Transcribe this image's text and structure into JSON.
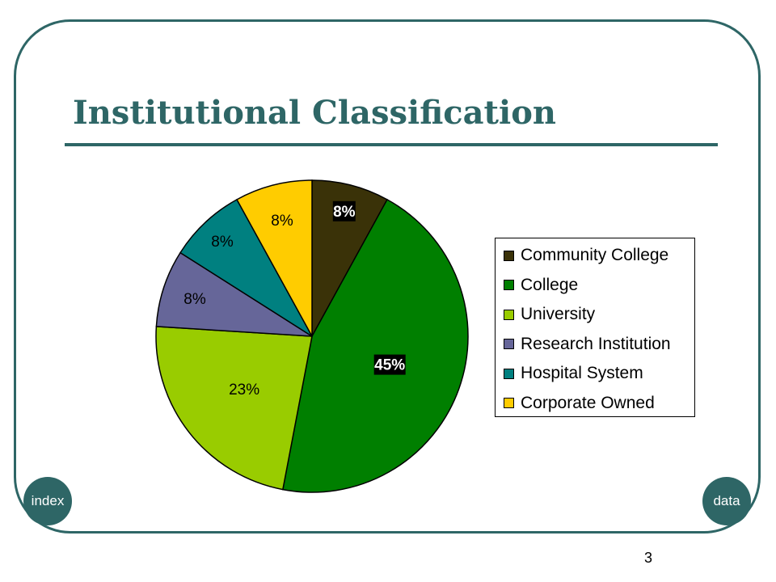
{
  "slide": {
    "title": "Institutional Classification",
    "page_number": "3",
    "nav": {
      "index_label": "index",
      "data_label": "data"
    }
  },
  "colors": {
    "accent": "#2e6666"
  },
  "chart_data": {
    "type": "pie",
    "title": "",
    "unit": "%",
    "categories": [
      "Community College",
      "College",
      "University",
      "Research Institution",
      "Hospital System",
      "Corporate Owned"
    ],
    "values": [
      8,
      45,
      23,
      8,
      8,
      8
    ],
    "labels": [
      "8%",
      "45%",
      "23%",
      "8%",
      "8%",
      "8%"
    ],
    "colors": [
      "#3a3208",
      "#007f00",
      "#99cc00",
      "#666699",
      "#008080",
      "#ffcc00"
    ],
    "label_styles": [
      "inverse",
      "inverse",
      "plain",
      "plain",
      "plain",
      "plain"
    ],
    "legend_position": "right",
    "start_angle": "12 o'clock, clockwise"
  }
}
